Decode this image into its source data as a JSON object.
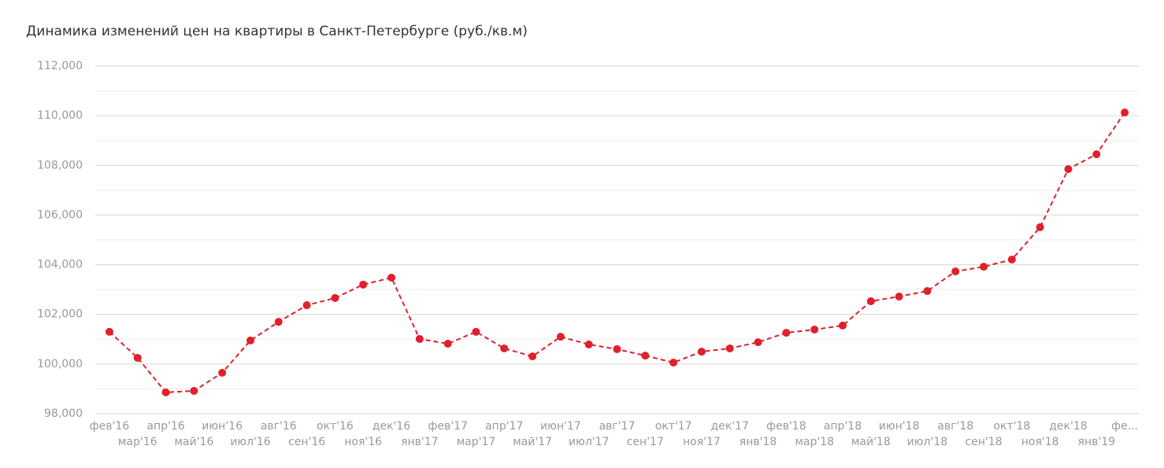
{
  "chart_data": {
    "type": "line",
    "title": "Динамика изменений цен на квартиры в Санкт-Петербурге (руб./кв.м)",
    "categories": [
      "фев'16",
      "мар'16",
      "апр'16",
      "май'16",
      "июн'16",
      "июл'16",
      "авг'16",
      "сен'16",
      "окт'16",
      "ноя'16",
      "дек'16",
      "янв'17",
      "фев'17",
      "мар'17",
      "апр'17",
      "май'17",
      "июн'17",
      "июл'17",
      "авг'17",
      "сен'17",
      "окт'17",
      "ноя'17",
      "дек'17",
      "янв'18",
      "фев'18",
      "мар'18",
      "апр'18",
      "май'18",
      "июн'18",
      "июл'18",
      "авг'18",
      "сен'18",
      "окт'18",
      "ноя'18",
      "дек'18",
      "янв'19",
      "фе..."
    ],
    "values": [
      101300,
      100250,
      98860,
      98920,
      99650,
      100950,
      101700,
      102370,
      102660,
      103200,
      103480,
      101010,
      100820,
      101300,
      100630,
      100310,
      101100,
      100790,
      100600,
      100340,
      100060,
      100500,
      100630,
      100880,
      101260,
      101390,
      101550,
      102530,
      102720,
      102940,
      103730,
      103920,
      104210,
      105510,
      107850,
      108450,
      110130
    ],
    "color": "#e0202a",
    "ylim": [
      98000,
      112000
    ],
    "yticks": [
      {
        "value": 98000,
        "label": "98,000"
      },
      {
        "value": 100000,
        "label": "100,000"
      },
      {
        "value": 102000,
        "label": "102,000"
      },
      {
        "value": 104000,
        "label": "104,000"
      },
      {
        "value": 106000,
        "label": "106,000"
      },
      {
        "value": 108000,
        "label": "108,000"
      },
      {
        "value": 110000,
        "label": "110,000"
      },
      {
        "value": 112000,
        "label": "112,000"
      }
    ],
    "yminorticks": [
      99000,
      101000,
      103000,
      105000,
      107000,
      109000,
      111000
    ],
    "grid": true
  }
}
